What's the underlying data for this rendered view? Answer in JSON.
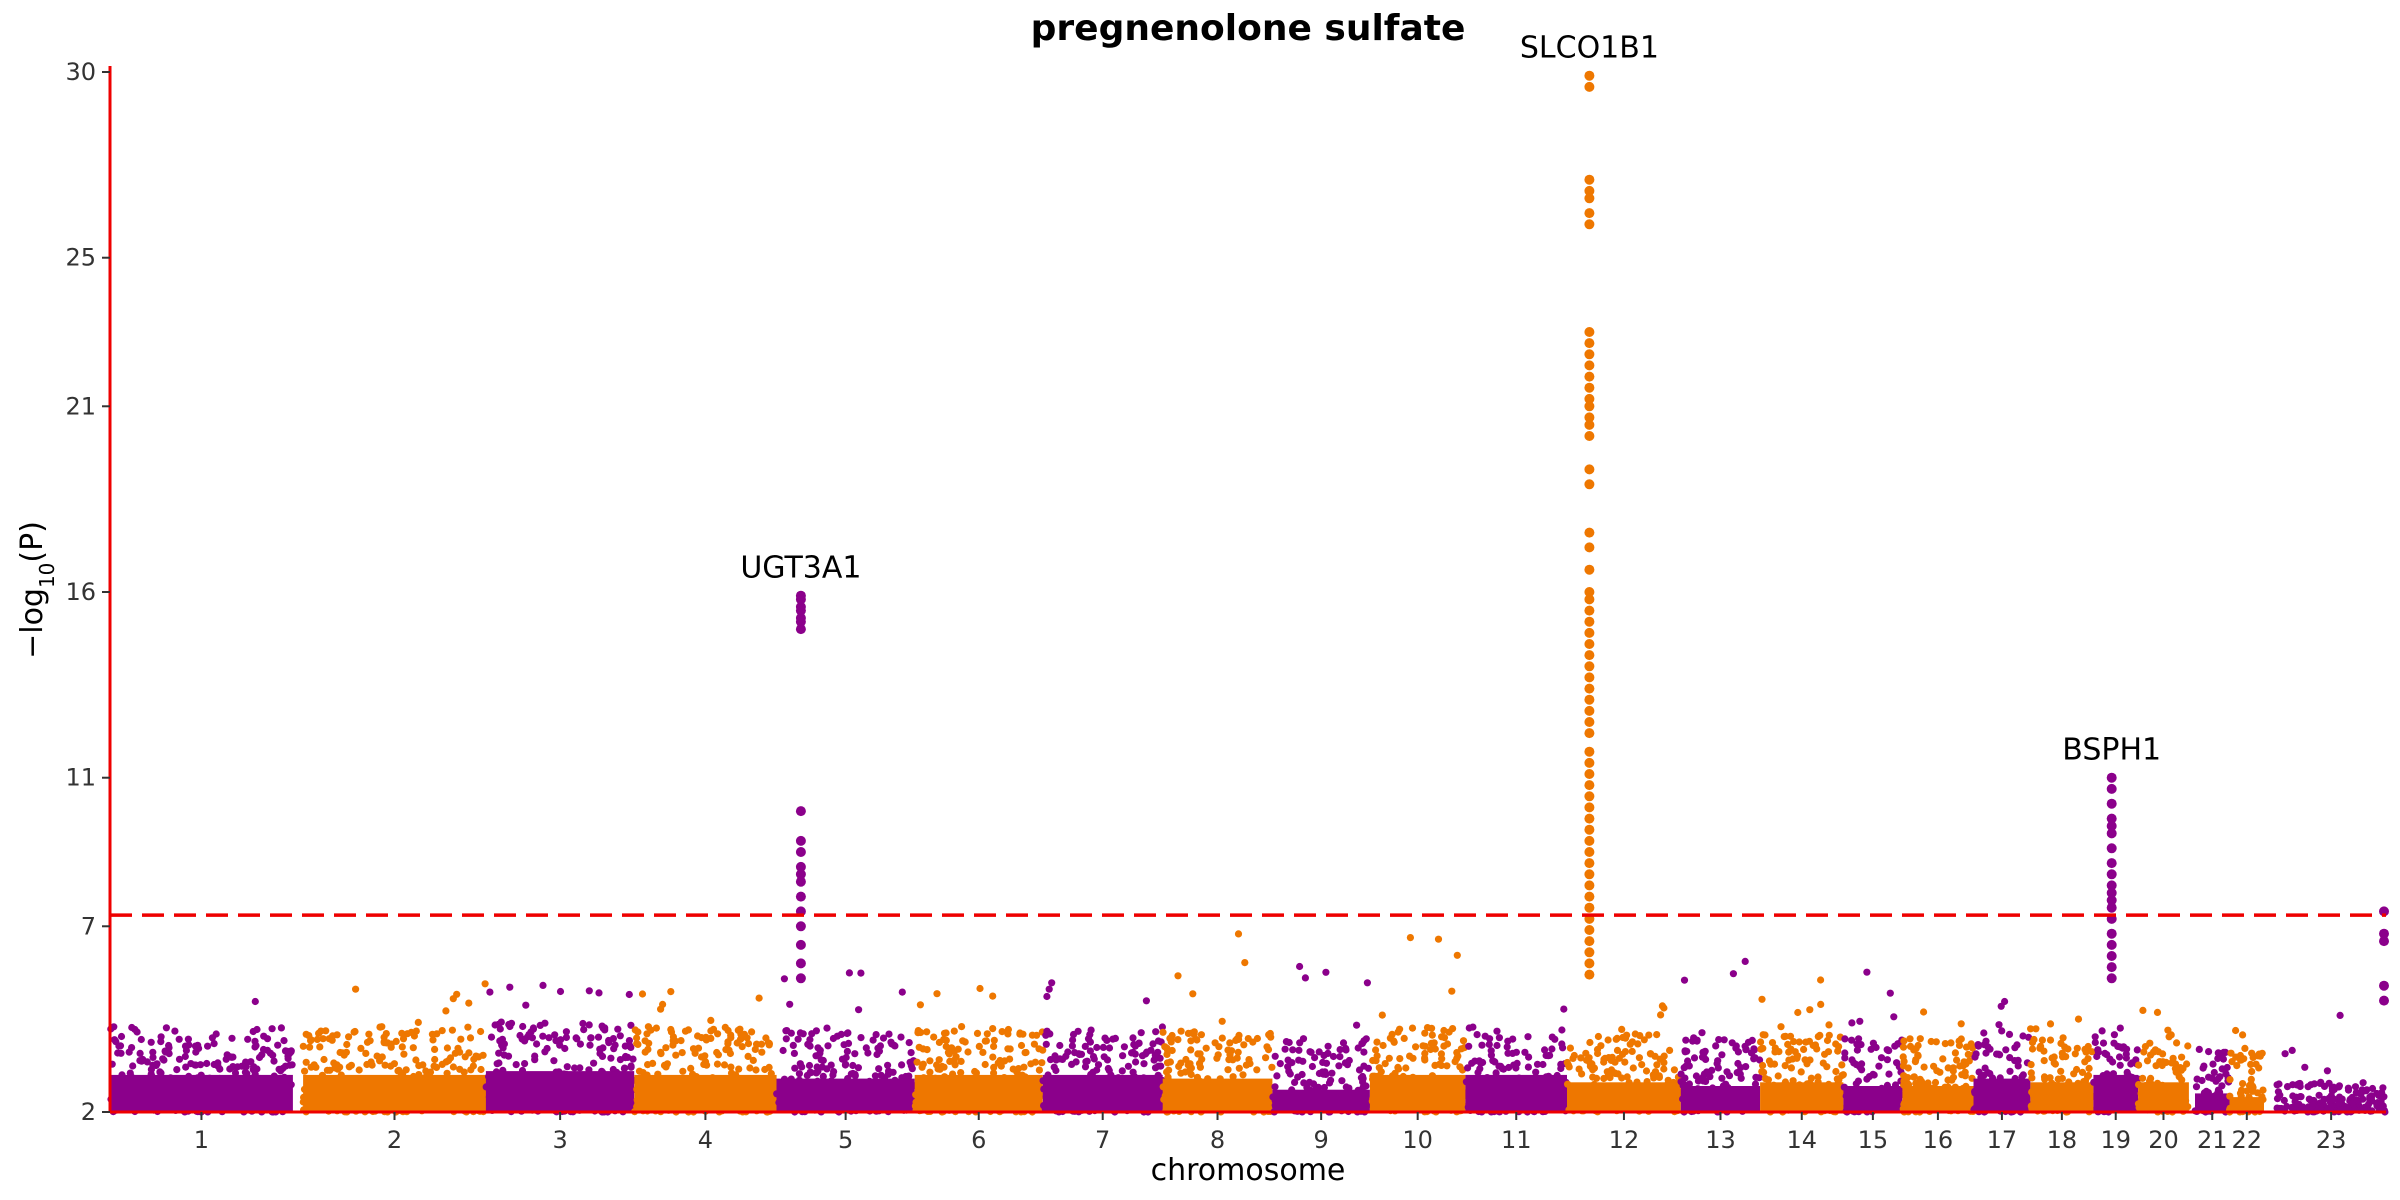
{
  "chart_data": {
    "type": "scatter",
    "subtype": "manhattan",
    "title": "pregnenolone sulfate",
    "xlabel": "chromosome",
    "ylabel_prefix": "−log",
    "ylabel_sub": "10",
    "ylabel_suffix": "(P)",
    "ylim": [
      2,
      30
    ],
    "yticks": [
      2,
      7,
      11,
      16,
      21,
      25,
      30
    ],
    "grid": false,
    "legend": "none",
    "threshold": 7.3,
    "colors": {
      "odd": "#8B008B",
      "even": "#EE7700",
      "axis": "#ee0000",
      "threshold": "#ee0000"
    },
    "chromosomes": [
      {
        "label": "1",
        "start": 0.0,
        "end": 0.9,
        "base": 3.6,
        "spread": 0.7,
        "top": 5.2
      },
      {
        "label": "2",
        "start": 0.95,
        "end": 1.85,
        "base": 3.6,
        "spread": 0.7,
        "top": 5.5
      },
      {
        "label": "3",
        "start": 1.85,
        "end": 2.58,
        "base": 3.7,
        "spread": 0.7,
        "top": 5.7
      },
      {
        "label": "4",
        "start": 2.58,
        "end": 3.28,
        "base": 3.6,
        "spread": 0.7,
        "top": 5.3
      },
      {
        "label": "5",
        "start": 3.28,
        "end": 3.96,
        "base": 3.5,
        "spread": 0.7,
        "top": 5.9
      },
      {
        "label": "6",
        "start": 3.96,
        "end": 4.59,
        "base": 3.6,
        "spread": 0.7,
        "top": 5.5
      },
      {
        "label": "7",
        "start": 4.59,
        "end": 5.18,
        "base": 3.6,
        "spread": 0.7,
        "top": 6.0
      },
      {
        "label": "8",
        "start": 5.18,
        "end": 5.72,
        "base": 3.5,
        "spread": 0.7,
        "top": 6.8
      },
      {
        "label": "9",
        "start": 5.72,
        "end": 6.2,
        "base": 3.2,
        "spread": 0.8,
        "top": 6.0
      },
      {
        "label": "10",
        "start": 6.2,
        "end": 6.67,
        "base": 3.6,
        "spread": 0.7,
        "top": 7.1
      },
      {
        "label": "11",
        "start": 6.67,
        "end": 7.17,
        "base": 3.6,
        "spread": 0.7,
        "top": 5.4
      },
      {
        "label": "12",
        "start": 7.17,
        "end": 7.73,
        "base": 3.4,
        "spread": 0.7,
        "top": 4.9
      },
      {
        "label": "13",
        "start": 7.73,
        "end": 8.12,
        "base": 3.3,
        "spread": 0.7,
        "top": 6.1
      },
      {
        "label": "14",
        "start": 8.12,
        "end": 8.53,
        "base": 3.4,
        "spread": 0.7,
        "top": 5.6
      },
      {
        "label": "15",
        "start": 8.53,
        "end": 8.82,
        "base": 3.3,
        "spread": 0.7,
        "top": 6.0
      },
      {
        "label": "16",
        "start": 8.82,
        "end": 9.17,
        "base": 3.3,
        "spread": 0.7,
        "top": 6.6
      },
      {
        "label": "17",
        "start": 9.17,
        "end": 9.45,
        "base": 3.5,
        "spread": 0.7,
        "top": 5.2
      },
      {
        "label": "18",
        "start": 9.45,
        "end": 9.76,
        "base": 3.4,
        "spread": 0.6,
        "top": 4.9
      },
      {
        "label": "19",
        "start": 9.76,
        "end": 9.98,
        "base": 3.6,
        "spread": 0.7,
        "top": 5.0
      },
      {
        "label": "20",
        "start": 9.98,
        "end": 10.23,
        "base": 3.4,
        "spread": 0.7,
        "top": 5.3
      },
      {
        "label": "21",
        "start": 10.26,
        "end": 10.43,
        "base": 3.1,
        "spread": 0.6,
        "top": 4.4
      },
      {
        "label": "22",
        "start": 10.43,
        "end": 10.6,
        "base": 3.0,
        "spread": 0.6,
        "top": 4.2
      },
      {
        "label": "23",
        "start": 10.66,
        "end": 11.2,
        "base": 2.4,
        "spread": 0.4,
        "top": 5.4
      }
    ],
    "peaks": [
      {
        "chromosome": "5",
        "position": 3.4,
        "label": "UGT3A1",
        "values": [
          15.0,
          15.2,
          15.3,
          15.5,
          15.6,
          15.8,
          15.9,
          10.1,
          9.3,
          9.0,
          8.6,
          8.4,
          8.2,
          7.8,
          7.4,
          7.0,
          6.5,
          6.0,
          5.6
        ]
      },
      {
        "chromosome": "12",
        "position": 7.28,
        "label": "SLCO1B1",
        "values": [
          29.9,
          29.6,
          27.1,
          26.8,
          26.6,
          26.2,
          25.9,
          23.0,
          22.7,
          22.4,
          22.1,
          21.8,
          21.5,
          21.2,
          21.0,
          20.7,
          20.5,
          20.2,
          19.3,
          18.9,
          17.6,
          17.2,
          16.6,
          16.0,
          15.8,
          15.5,
          15.2,
          14.9,
          14.6,
          14.3,
          14.0,
          13.7,
          13.4,
          13.1,
          12.8,
          12.5,
          12.2,
          11.7,
          11.4,
          11.1,
          10.8,
          10.5,
          10.2,
          9.9,
          9.6,
          9.3,
          9.0,
          8.7,
          8.4,
          8.1,
          7.8,
          7.5,
          7.2,
          6.9,
          6.6,
          6.3,
          6.0,
          5.7
        ]
      },
      {
        "chromosome": "19",
        "position": 9.85,
        "label": "BSPH1",
        "values": [
          11.0,
          10.7,
          10.3,
          9.9,
          9.7,
          9.5,
          9.1,
          8.7,
          8.4,
          8.1,
          7.9,
          7.7,
          7.5,
          7.2,
          6.8,
          6.5,
          6.2,
          5.9,
          5.6
        ]
      },
      {
        "chromosome": "23",
        "position": 11.19,
        "label": "",
        "values": [
          7.4,
          6.8,
          6.6,
          5.4,
          5.0
        ]
      }
    ]
  }
}
